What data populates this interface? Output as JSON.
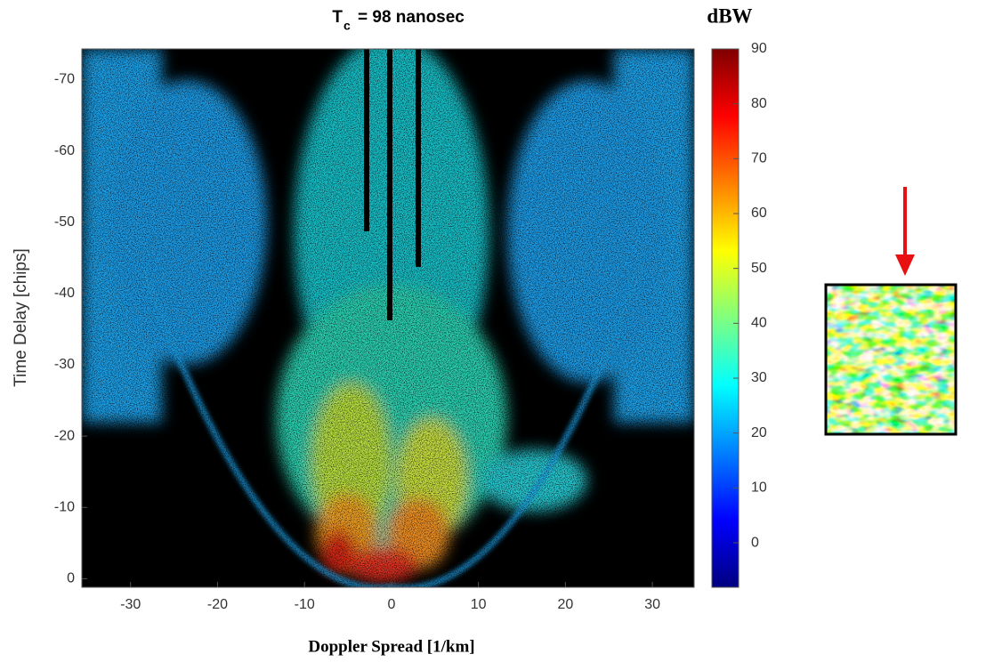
{
  "chart_data": {
    "type": "heatmap",
    "title": "T",
    "title_subscript": "c",
    "title_rest": "= 98 nanosec",
    "x_label": "Doppler Spread [1/km]",
    "y_label": "Time Delay [chips]",
    "xlim": [
      -35.6,
      34.8
    ],
    "xticks": [
      -30,
      -20,
      -10,
      0,
      10,
      20,
      30
    ],
    "ylim": [
      1.2,
      -74.3
    ],
    "yticks": [
      0,
      -10,
      -20,
      -30,
      -40,
      -50,
      -60,
      -70
    ],
    "colorbar_label": "dBW",
    "clim": [
      -8.1,
      90
    ],
    "cticks": [
      0,
      10,
      20,
      30,
      40,
      50,
      60,
      70,
      80,
      90
    ],
    "colormap": "jet"
  }
}
